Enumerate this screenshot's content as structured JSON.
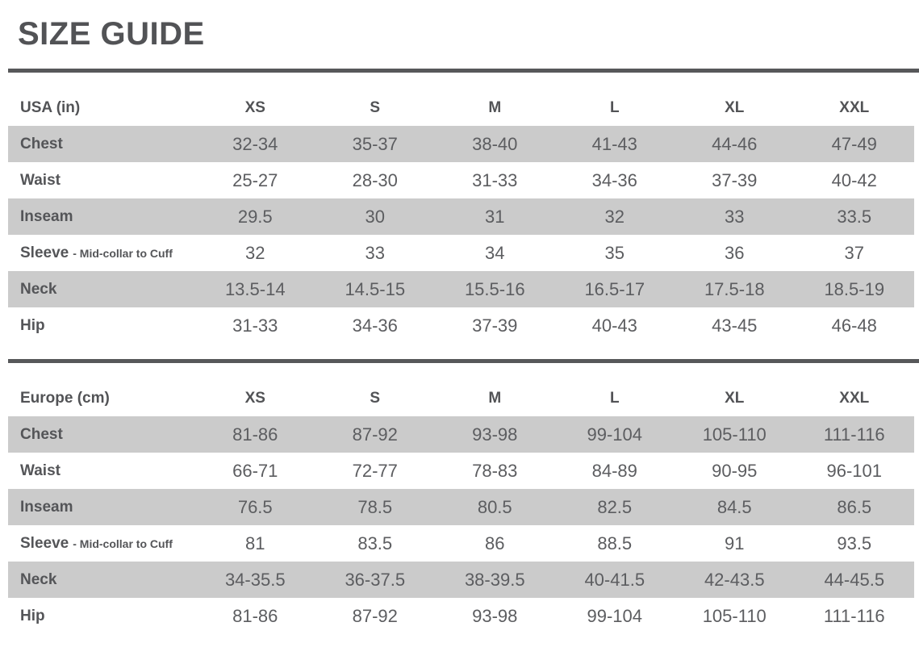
{
  "page": {
    "title": "SIZE GUIDE"
  },
  "colors": {
    "text": "#58595b",
    "stripe": "#cbcbcb",
    "rule": "#57585a",
    "background": "#ffffff"
  },
  "sizes": [
    "XS",
    "S",
    "M",
    "L",
    "XL",
    "XXL"
  ],
  "tables": [
    {
      "unit_label": "USA (in)",
      "rows": [
        {
          "label": "Chest",
          "values": [
            "32-34",
            "35-37",
            "38-40",
            "41-43",
            "44-46",
            "47-49"
          ]
        },
        {
          "label": "Waist",
          "values": [
            "25-27",
            "28-30",
            "31-33",
            "34-36",
            "37-39",
            "40-42"
          ]
        },
        {
          "label": "Inseam",
          "values": [
            "29.5",
            "30",
            "31",
            "32",
            "33",
            "33.5"
          ]
        },
        {
          "label": "Sleeve",
          "sub": "- Mid-collar to Cuff",
          "values": [
            "32",
            "33",
            "34",
            "35",
            "36",
            "37"
          ]
        },
        {
          "label": "Neck",
          "values": [
            "13.5-14",
            "14.5-15",
            "15.5-16",
            "16.5-17",
            "17.5-18",
            "18.5-19"
          ]
        },
        {
          "label": "Hip",
          "values": [
            "31-33",
            "34-36",
            "37-39",
            "40-43",
            "43-45",
            "46-48"
          ]
        }
      ]
    },
    {
      "unit_label": "Europe (cm)",
      "rows": [
        {
          "label": "Chest",
          "values": [
            "81-86",
            "87-92",
            "93-98",
            "99-104",
            "105-110",
            "111-116"
          ]
        },
        {
          "label": "Waist",
          "values": [
            "66-71",
            "72-77",
            "78-83",
            "84-89",
            "90-95",
            "96-101"
          ]
        },
        {
          "label": "Inseam",
          "values": [
            "76.5",
            "78.5",
            "80.5",
            "82.5",
            "84.5",
            "86.5"
          ]
        },
        {
          "label": "Sleeve",
          "sub": "- Mid-collar to Cuff",
          "values": [
            "81",
            "83.5",
            "86",
            "88.5",
            "91",
            "93.5"
          ]
        },
        {
          "label": "Neck",
          "values": [
            "34-35.5",
            "36-37.5",
            "38-39.5",
            "40-41.5",
            "42-43.5",
            "44-45.5"
          ]
        },
        {
          "label": "Hip",
          "values": [
            "81-86",
            "87-92",
            "93-98",
            "99-104",
            "105-110",
            "111-116"
          ]
        }
      ]
    }
  ]
}
